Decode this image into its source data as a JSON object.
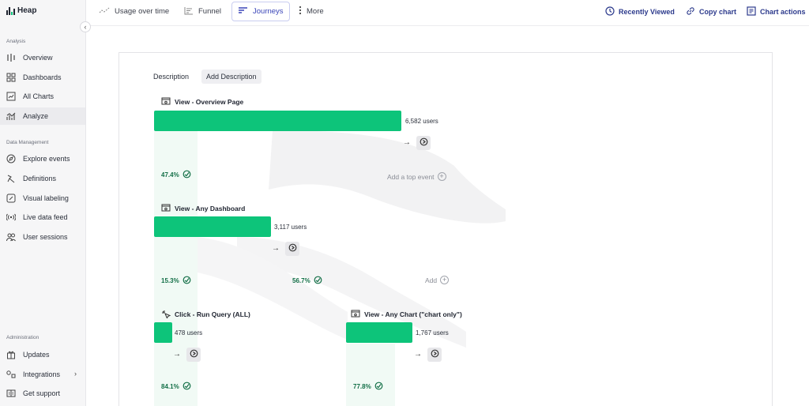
{
  "app": {
    "name": "Heap"
  },
  "sidebar": {
    "collapse_glyph": "‹",
    "sections": {
      "analysis": "Analysis",
      "data_management": "Data Management",
      "administration": "Administration"
    },
    "items": [
      {
        "label": "Overview",
        "icon": "overview-icon"
      },
      {
        "label": "Dashboards",
        "icon": "dashboards-icon"
      },
      {
        "label": "All Charts",
        "icon": "all-charts-icon"
      },
      {
        "label": "Analyze",
        "icon": "analyze-icon",
        "active": true
      },
      {
        "label": "Explore events",
        "icon": "explore-icon"
      },
      {
        "label": "Definitions",
        "icon": "definitions-icon"
      },
      {
        "label": "Visual labeling",
        "icon": "visual-labeling-icon"
      },
      {
        "label": "Live data feed",
        "icon": "live-data-feed-icon"
      },
      {
        "label": "User sessions",
        "icon": "user-sessions-icon"
      },
      {
        "label": "Updates",
        "icon": "updates-icon"
      },
      {
        "label": "Integrations",
        "icon": "integrations-icon",
        "chevron": "›"
      },
      {
        "label": "Get support",
        "icon": "get-support-icon"
      }
    ]
  },
  "topbar": {
    "tabs": [
      {
        "label": "Usage over time",
        "icon": "usage-over-time-icon"
      },
      {
        "label": "Funnel",
        "icon": "funnel-icon"
      },
      {
        "label": "Journeys",
        "icon": "journeys-icon",
        "active": true
      },
      {
        "label": "More",
        "icon": "more-vertical-icon"
      }
    ],
    "actions": [
      {
        "label": "Recently Viewed",
        "icon": "history-icon"
      },
      {
        "label": "Copy chart",
        "icon": "link-icon"
      },
      {
        "label": "Chart actions",
        "icon": "chart-actions-icon"
      }
    ]
  },
  "chart": {
    "description_label": "Description",
    "add_description_label": "Add Description",
    "accent_color": "#0dc47a",
    "steps": [
      {
        "title": "View - Overview Page",
        "users_text": "6,582 users",
        "users": 6582,
        "conversion": "47.4%",
        "icon": "view-page-icon"
      },
      {
        "title": "View - Any Dashboard",
        "users_text": "3,117 users",
        "users": 3117,
        "conversions": [
          "15.3%",
          "56.7%"
        ],
        "icon": "view-page-icon"
      },
      {
        "title": "Click - Run Query (ALL)",
        "users_text": "478 users",
        "users": 478,
        "conversion": "84.1%",
        "icon": "click-icon"
      },
      {
        "title": "View - Any Chart (\"chart only\")",
        "users_text": "1,767 users",
        "users": 1767,
        "conversion": "77.8%",
        "icon": "view-page-icon"
      }
    ],
    "add_top_event_label": "Add a top event",
    "add_label": "Add",
    "next_arrow": "→"
  }
}
